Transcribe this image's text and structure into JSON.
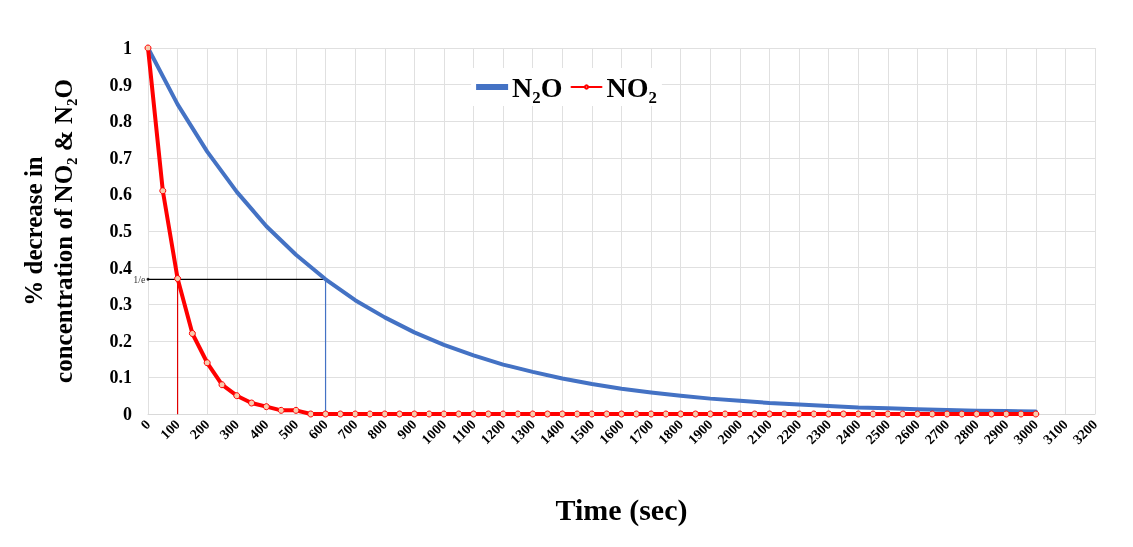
{
  "chart_data": {
    "type": "line",
    "xlabel": "Time (sec)",
    "ylabel": "% decrease in concentration of NO₂ & N₂O",
    "xlim": [
      0,
      3200
    ],
    "xticks": [
      0,
      100,
      200,
      300,
      400,
      500,
      600,
      700,
      800,
      900,
      1000,
      1100,
      1200,
      1300,
      1400,
      1500,
      1600,
      1700,
      1800,
      1900,
      2000,
      2100,
      2200,
      2300,
      2400,
      2500,
      2600,
      2700,
      2800,
      2900,
      3000,
      3100,
      3200
    ],
    "ylim": [
      0,
      1
    ],
    "yticks": [
      0,
      0.1,
      0.2,
      0.3,
      0.4,
      0.5,
      0.6,
      0.7,
      0.8,
      0.9,
      1
    ],
    "grid": true,
    "legend": "top",
    "annotations": [
      {
        "text": "1/e",
        "x": 0,
        "y": 0.368
      }
    ],
    "series": [
      {
        "name": "N₂O",
        "color": "#4472c4",
        "marker": "none",
        "x": [
          0,
          100,
          200,
          300,
          400,
          500,
          600,
          700,
          800,
          900,
          1000,
          1100,
          1200,
          1300,
          1400,
          1500,
          1600,
          1700,
          1800,
          1900,
          2000,
          2100,
          2200,
          2300,
          2400,
          2500,
          2600,
          2700,
          2800,
          2900,
          3000
        ],
        "values": [
          1,
          0.846,
          0.717,
          0.607,
          0.513,
          0.435,
          0.368,
          0.311,
          0.264,
          0.223,
          0.189,
          0.16,
          0.135,
          0.115,
          0.097,
          0.082,
          0.069,
          0.059,
          0.05,
          0.042,
          0.036,
          0.03,
          0.026,
          0.022,
          0.018,
          0.016,
          0.013,
          0.011,
          0.009,
          0.008,
          0.007
        ]
      },
      {
        "name": "NO₂",
        "color": "#ff0000",
        "marker": "circle",
        "x": [
          0,
          50,
          100,
          150,
          200,
          250,
          300,
          350,
          400,
          450,
          500,
          550,
          600,
          650,
          700,
          750,
          800,
          850,
          900,
          950,
          1000,
          1050,
          1100,
          1150,
          1200,
          1250,
          1300,
          1350,
          1400,
          1450,
          1500,
          1550,
          1600,
          1650,
          1700,
          1750,
          1800,
          1850,
          1900,
          1950,
          2000,
          2050,
          2100,
          2150,
          2200,
          2250,
          2300,
          2350,
          2400,
          2450,
          2500,
          2550,
          2600,
          2650,
          2700,
          2750,
          2800,
          2850,
          2900,
          2950,
          3000
        ],
        "values": [
          1,
          0.61,
          0.37,
          0.22,
          0.14,
          0.08,
          0.05,
          0.03,
          0.02,
          0.01,
          0.01,
          0,
          0,
          0,
          0,
          0,
          0,
          0,
          0,
          0,
          0,
          0,
          0,
          0,
          0,
          0,
          0,
          0,
          0,
          0,
          0,
          0,
          0,
          0,
          0,
          0,
          0,
          0,
          0,
          0,
          0,
          0,
          0,
          0,
          0,
          0,
          0,
          0,
          0,
          0,
          0,
          0,
          0,
          0,
          0,
          0,
          0,
          0,
          0,
          0,
          0
        ]
      },
      {
        "color": "#000000",
        "marker": "none",
        "x": [
          0,
          600
        ],
        "values": [
          0.368,
          0.368
        ]
      },
      {
        "color": "#e00000",
        "marker": "none",
        "x": [
          100,
          100
        ],
        "values": [
          0,
          0.368
        ]
      },
      {
        "color": "#4472c4",
        "marker": "none",
        "x": [
          600,
          600
        ],
        "values": [
          0,
          0.368
        ]
      }
    ]
  }
}
